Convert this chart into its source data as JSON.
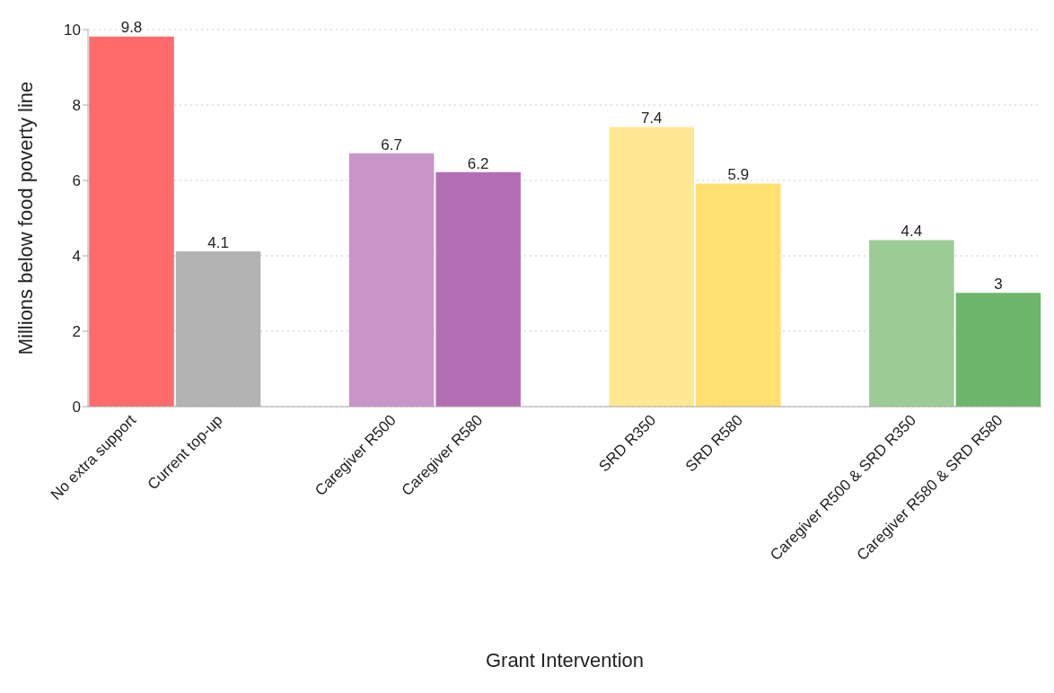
{
  "chart_data": {
    "type": "bar",
    "xlabel": "Grant Intervention",
    "ylabel": "Millions below food poverty line",
    "categories": [
      "No extra support",
      "Current top-up",
      null,
      "Caregiver R500",
      "Caregiver R580",
      null,
      "SRD R350",
      "SRD R580",
      null,
      "Caregiver R500 & SRD R350",
      "Caregiver R580 & SRD R580"
    ],
    "values": [
      9.8,
      4.1,
      null,
      6.7,
      6.2,
      null,
      7.4,
      5.9,
      null,
      4.4,
      3
    ],
    "colors": [
      "#ff6b6b",
      "#b3b3b3",
      null,
      "#c994c8",
      "#b46eb6",
      null,
      "#ffe891",
      "#ffe070",
      null,
      "#9bcc95",
      "#6db66b"
    ],
    "ylim": [
      0,
      10
    ],
    "yticks": [
      0,
      2,
      4,
      6,
      8,
      10
    ],
    "grid": "y",
    "data_labels": true
  }
}
